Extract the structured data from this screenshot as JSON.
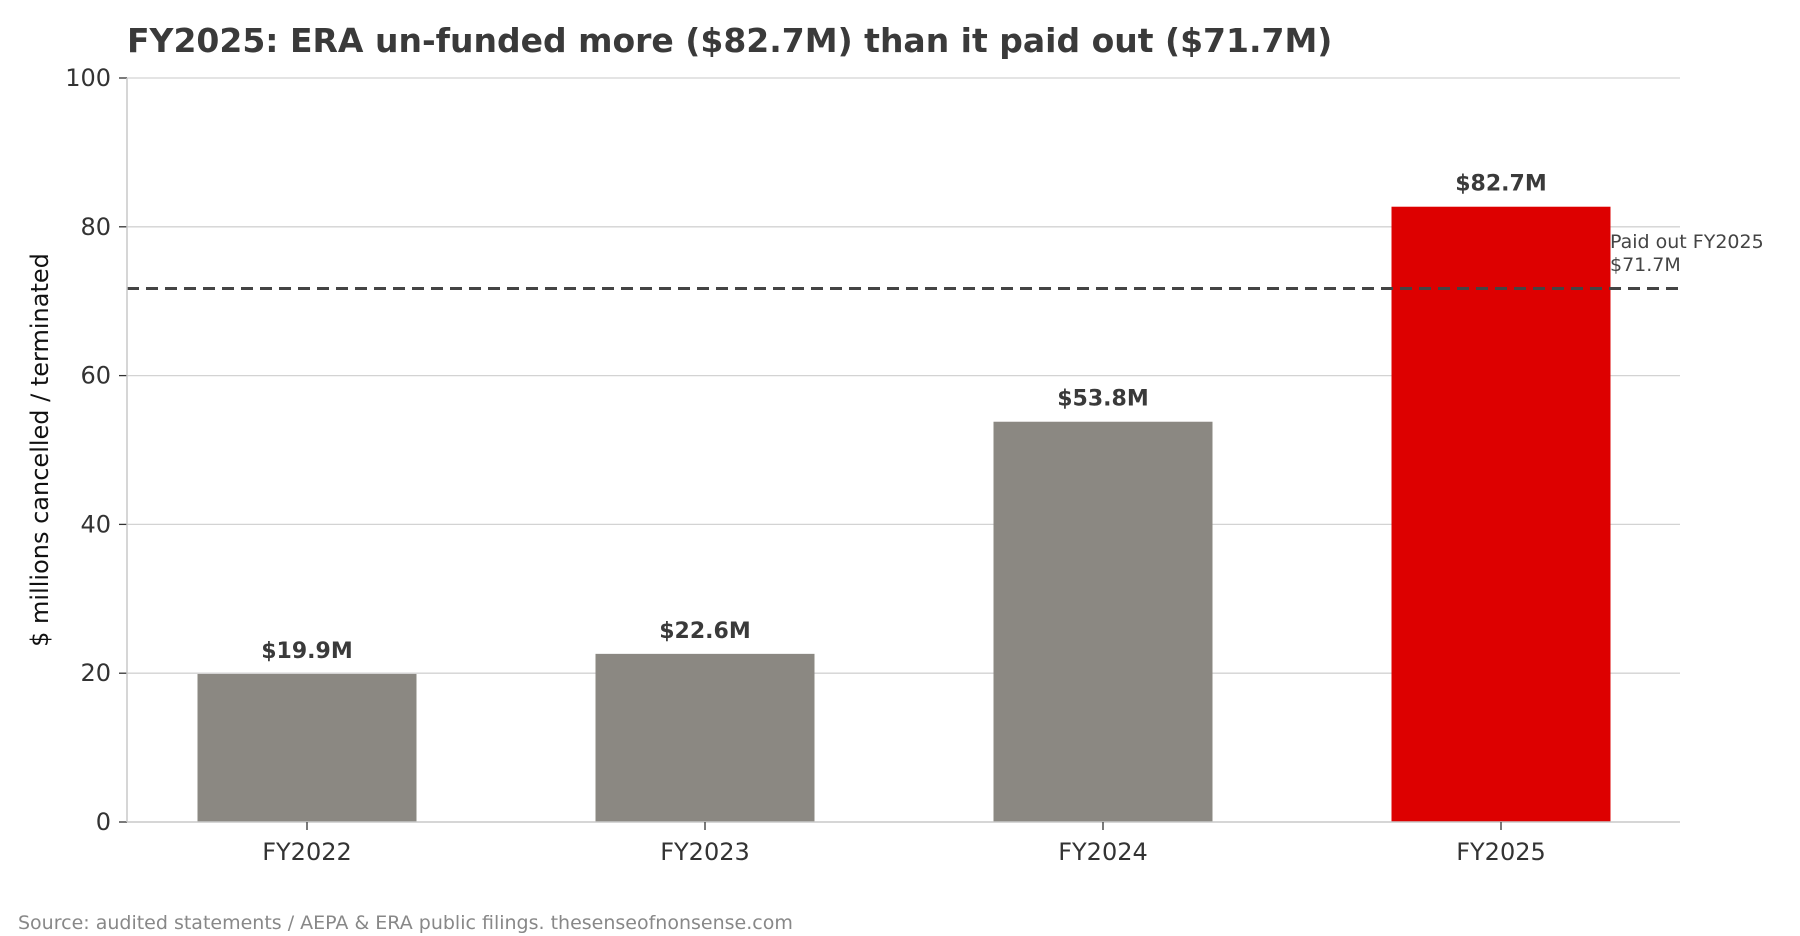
{
  "chart_data": {
    "type": "bar",
    "title": "FY2025: ERA un-funded more ($82.7M) than it paid out ($71.7M)",
    "xlabel": "",
    "ylabel": "$ millions cancelled / terminated",
    "categories": [
      "FY2022",
      "FY2023",
      "FY2024",
      "FY2025"
    ],
    "values": [
      19.9,
      22.6,
      53.8,
      82.7
    ],
    "data_labels": [
      "$19.9M",
      "$22.6M",
      "$53.8M",
      "$82.7M"
    ],
    "bar_colors": [
      "#8b8882",
      "#8b8882",
      "#8b8882",
      "#dd0000"
    ],
    "ylim": [
      0,
      100
    ],
    "yticks": [
      0,
      20,
      40,
      60,
      80,
      100
    ],
    "grid": "horizontal",
    "reference_line": {
      "value": 71.7,
      "style": "dashed",
      "color": "#444444",
      "label_line1": "Paid out FY2025",
      "label_line2": "$71.7M"
    }
  },
  "source_note": "Source: audited statements / AEPA & ERA public filings. thesenseofnonsense.com"
}
